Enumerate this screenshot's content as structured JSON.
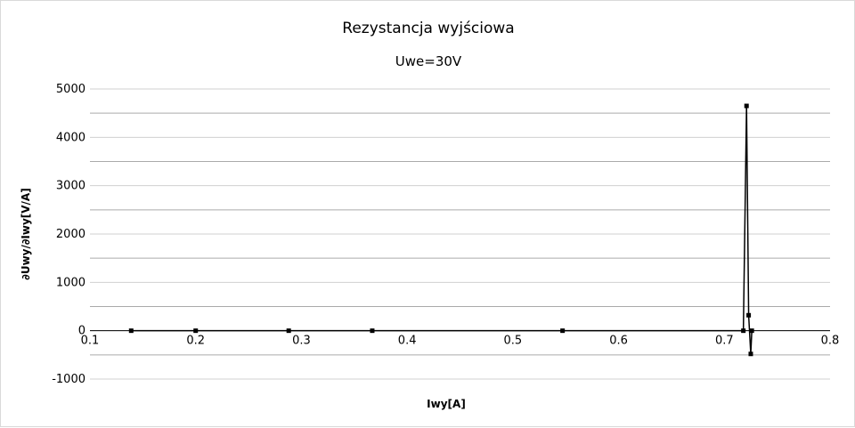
{
  "chart_data": {
    "type": "line",
    "title": "Rezystancja wyjściowa",
    "subtitle": "Uwe=30V",
    "xlabel": "Iwy[A]",
    "ylabel": "∂Uwy/∂Iwy[V/A]",
    "xlim": [
      0.1,
      0.8
    ],
    "ylim": [
      -1000,
      5000
    ],
    "x_ticks": [
      "0.1",
      "0.2",
      "0.3",
      "0.4",
      "0.5",
      "0.6",
      "0.7",
      "0.8"
    ],
    "y_ticks": [
      "-1000",
      "0",
      "1000",
      "2000",
      "3000",
      "4000",
      "5000"
    ],
    "grid": true,
    "legend": "none",
    "series": [
      {
        "color": "#000000",
        "x": [
          0.139,
          0.2,
          0.288,
          0.367,
          0.547,
          0.718,
          0.721,
          0.723,
          0.725,
          0.726
        ],
        "y": [
          0,
          0,
          0,
          0,
          0,
          0,
          4650,
          320,
          -480,
          0
        ]
      }
    ]
  }
}
